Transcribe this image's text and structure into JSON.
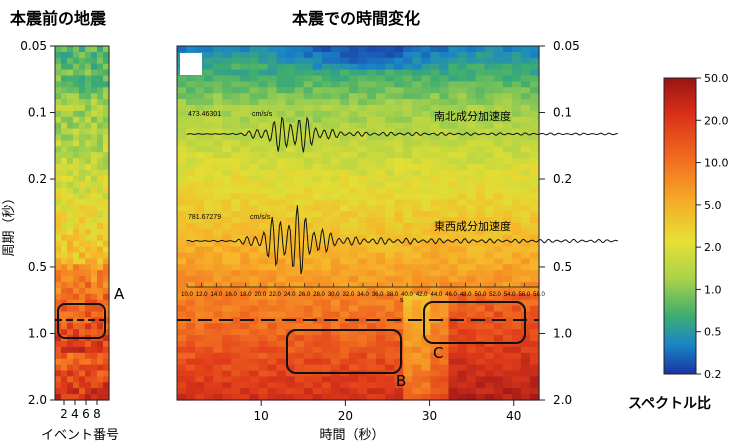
{
  "chart_data": {
    "type": "heatmap",
    "color_scale": {
      "label": "スペクトル比",
      "ticks": [
        "50.0",
        "20.0",
        "10.0",
        "5.0",
        "2.0",
        "1.0",
        "0.5",
        "0.2"
      ],
      "colors": [
        "#a01818",
        "#e03a1a",
        "#f47a22",
        "#f6b52a",
        "#e2de34",
        "#a9d24a",
        "#3fae6e",
        "#1a86c6",
        "#1a3aa8"
      ]
    },
    "left_panel": {
      "title": "本震前の地震",
      "xlabel": "イベント番号",
      "ylabel": "周期（秒）",
      "x_ticks": [
        "2",
        "4",
        "6",
        "8"
      ],
      "y_ticks": [
        "0.05",
        "0.1",
        "0.2",
        "0.5",
        "1.0",
        "2.0"
      ],
      "ylim": [
        0.05,
        2.0
      ],
      "yscale": "log",
      "annotation": "A"
    },
    "main_panel": {
      "title": "本震での時間変化",
      "xlabel": "時間（秒）",
      "x_ticks": [
        "10",
        "20",
        "30",
        "40"
      ],
      "y_ticks": [
        "0.05",
        "0.1",
        "0.2",
        "0.5",
        "1.0",
        "2.0"
      ],
      "ylim": [
        0.05,
        2.0
      ],
      "yscale": "log",
      "annotations": [
        "B",
        "C"
      ],
      "dashed_line_period": 0.85,
      "inset": {
        "trace1": {
          "label": "南北成分加速度",
          "amplitude": "473.46301",
          "unit": "cm/s/s"
        },
        "trace2": {
          "label": "東西成分加速度",
          "amplitude": "781.67279",
          "unit": "cm/s/s"
        },
        "axis_ticks": [
          "10.0",
          "12.0",
          "14.0",
          "16.0",
          "18.0",
          "20.0",
          "22.0",
          "24.0",
          "26.0",
          "28.0",
          "30.0",
          "32.0",
          "34.0",
          "36.0",
          "38.0",
          "40.0",
          "42.0",
          "44.0",
          "46.0",
          "48.0",
          "50.0",
          "52.0",
          "54.0",
          "56.0",
          "58.0"
        ],
        "axis_unit": "s"
      }
    }
  }
}
